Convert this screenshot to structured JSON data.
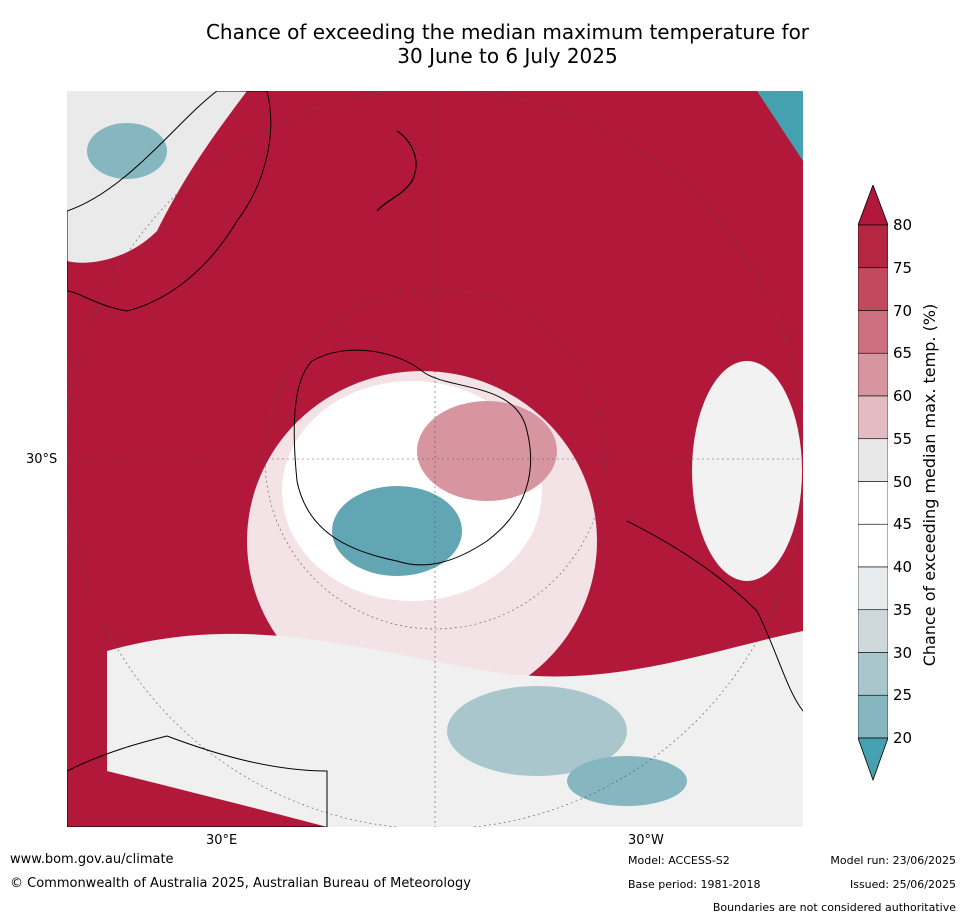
{
  "title_line1": "Chance of exceeding the median maximum temperature for",
  "title_line2": "30 June to 6 July 2025",
  "map": {
    "lat_label": "30°S",
    "lon_labels": [
      "30°E",
      "30°W"
    ],
    "colors": {
      "ocean_high": "#b2183a",
      "grey_band": "#e8e8e8",
      "teal_low": "#45a0b0",
      "land_outline": "#000000"
    }
  },
  "colorbar": {
    "title": "Chance of exceeding median max. temp. (%)",
    "ticks": [
      "80",
      "75",
      "70",
      "65",
      "60",
      "55",
      "50",
      "45",
      "40",
      "35",
      "30",
      "25",
      "20"
    ],
    "colors": [
      "#b52641",
      "#c24a5f",
      "#cc6f7e",
      "#d7969f",
      "#e3bcc1",
      "#e8e8e8",
      "#ffffff",
      "#ffffff",
      "#e8ecee",
      "#cfd9dc",
      "#a8c6cc",
      "#86b6bf",
      "#62a6b3",
      "#45a0b0"
    ],
    "top_arrow_color": "#b2183a",
    "bottom_arrow_color": "#45a0b0"
  },
  "footer": {
    "website": "www.bom.gov.au/climate",
    "copyright": "© Commonwealth of Australia 2025, Australian Bureau of Meteorology",
    "model": "Model: ACCESS-S2",
    "base_period": "Base period: 1981-2018",
    "model_run": "Model run: 23/06/2025",
    "issued": "Issued: 25/06/2025",
    "disclaimer": "Boundaries are not considered authoritative"
  }
}
